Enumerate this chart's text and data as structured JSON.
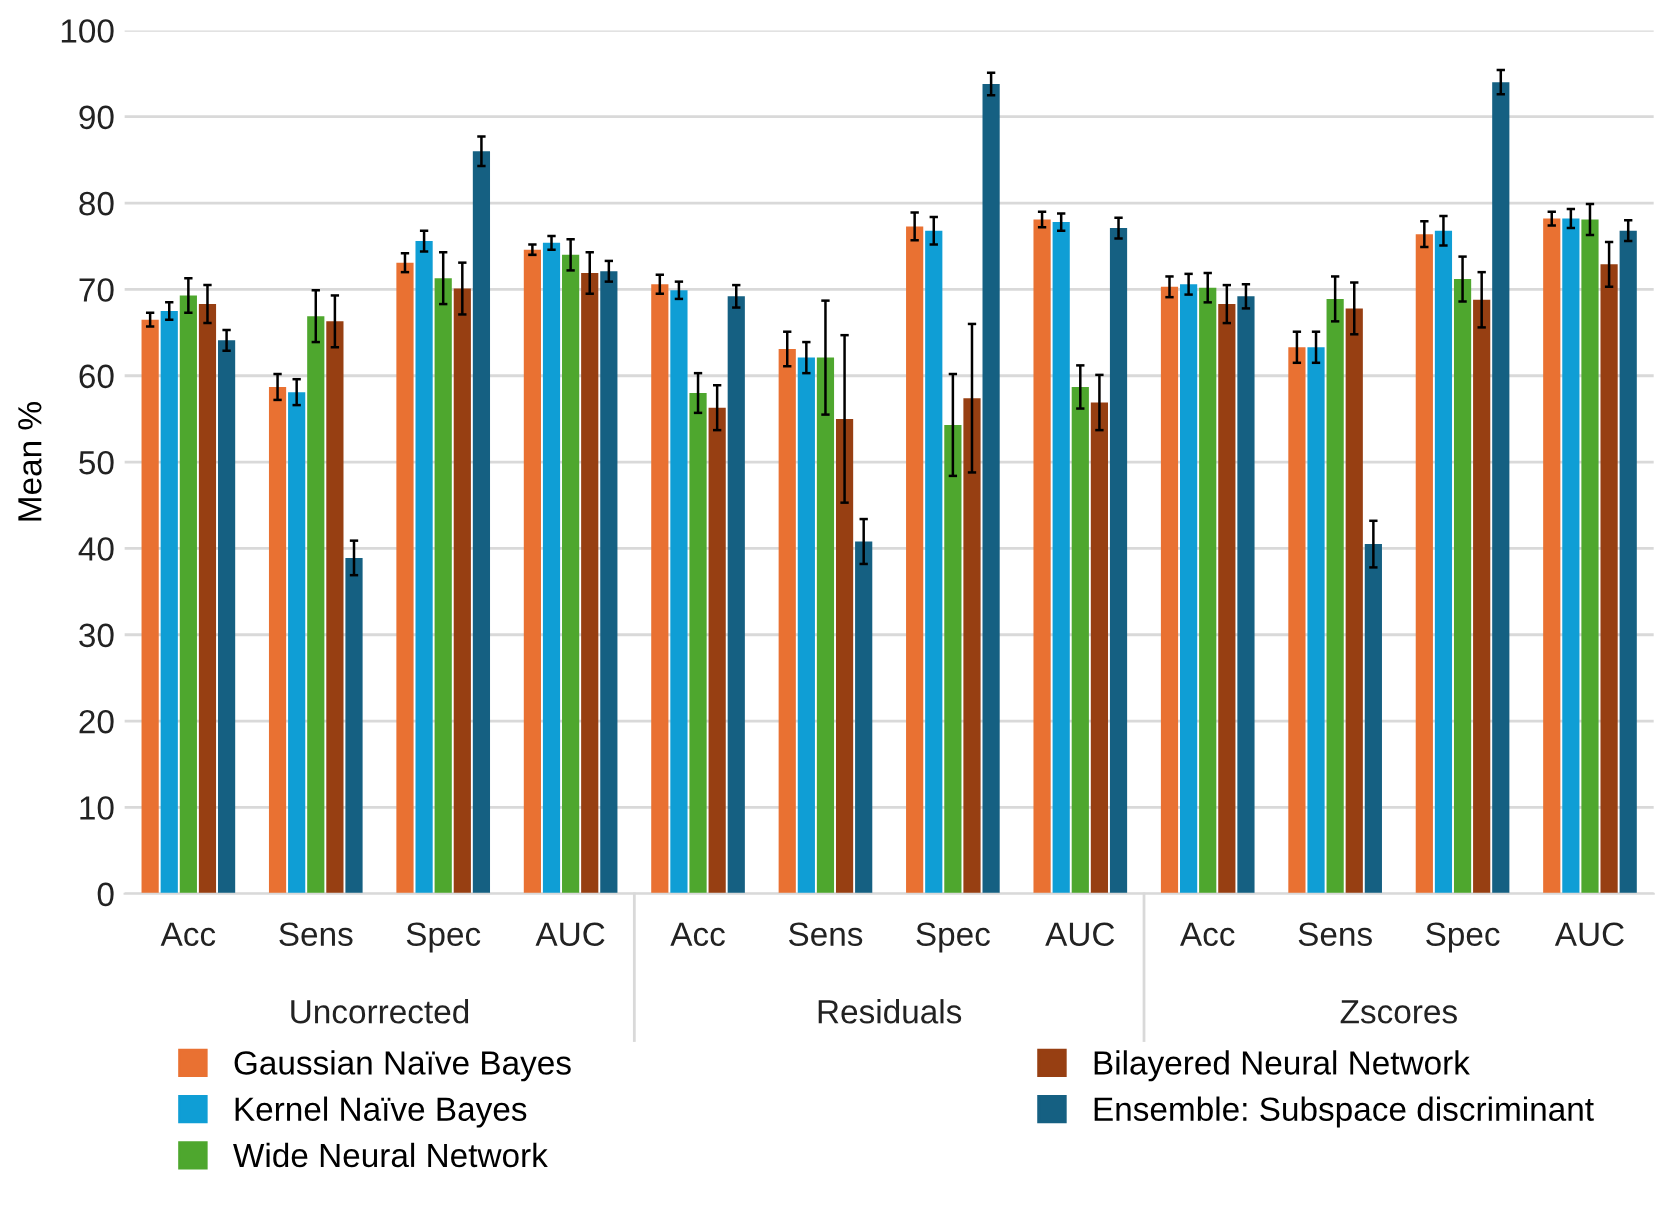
{
  "chart_data": {
    "type": "bar",
    "ylabel": "Mean %",
    "categories": [
      "Acc",
      "Sens",
      "Spec",
      "AUC",
      "Acc",
      "Sens",
      "Spec",
      "AUC",
      "Acc",
      "Sens",
      "Spec",
      "AUC"
    ],
    "annotations": [
      "Uncorrected",
      "Residuals",
      "Zscores"
    ],
    "series": [
      {
        "name": "Gaussian Naïve Bayes",
        "color": "#e97132",
        "values": [
          66.5,
          58.7,
          73.1,
          74.6,
          70.6,
          63.1,
          77.3,
          78.1,
          70.3,
          63.3,
          76.4,
          78.2
        ],
        "errors": [
          0.8,
          1.5,
          1.1,
          0.6,
          1.1,
          2.0,
          1.6,
          0.9,
          1.2,
          1.8,
          1.5,
          0.8
        ]
      },
      {
        "name": "Kernel Naïve Bayes",
        "color": "#0f9ed5",
        "values": [
          67.5,
          58.1,
          75.6,
          75.4,
          69.9,
          62.1,
          76.8,
          77.8,
          70.6,
          63.3,
          76.8,
          78.2
        ],
        "errors": [
          1.0,
          1.5,
          1.2,
          0.8,
          1.0,
          1.8,
          1.6,
          1.0,
          1.2,
          1.8,
          1.7,
          1.1
        ]
      },
      {
        "name": "Wide Neural Network",
        "color": "#4ea72e",
        "values": [
          69.3,
          66.9,
          71.3,
          74.0,
          58.0,
          62.1,
          54.3,
          58.7,
          70.2,
          68.9,
          71.2,
          78.1
        ],
        "errors": [
          2.0,
          3.0,
          3.0,
          1.8,
          2.3,
          6.6,
          5.9,
          2.5,
          1.7,
          2.6,
          2.6,
          1.8
        ]
      },
      {
        "name": "Bilayered Neural Network",
        "color": "#973f12",
        "values": [
          68.3,
          66.3,
          70.1,
          71.9,
          56.3,
          55.0,
          57.4,
          56.9,
          68.3,
          67.8,
          68.8,
          72.9
        ],
        "errors": [
          2.2,
          3.0,
          3.0,
          2.4,
          2.6,
          9.7,
          8.6,
          3.2,
          2.2,
          3.0,
          3.2,
          2.6
        ]
      },
      {
        "name": "Ensemble: Subspace discriminant",
        "color": "#156082",
        "values": [
          64.1,
          38.9,
          86.0,
          72.1,
          69.2,
          40.8,
          93.8,
          77.1,
          69.2,
          40.5,
          94.0,
          76.8
        ],
        "errors": [
          1.2,
          2.0,
          1.7,
          1.2,
          1.3,
          2.6,
          1.3,
          1.2,
          1.4,
          2.7,
          1.4,
          1.2
        ]
      }
    ],
    "ylim": [
      0,
      100
    ],
    "yticks": [
      0,
      10,
      20,
      30,
      40,
      50,
      60,
      70,
      80,
      90,
      100
    ],
    "grid": "y",
    "legend": "bottom"
  }
}
